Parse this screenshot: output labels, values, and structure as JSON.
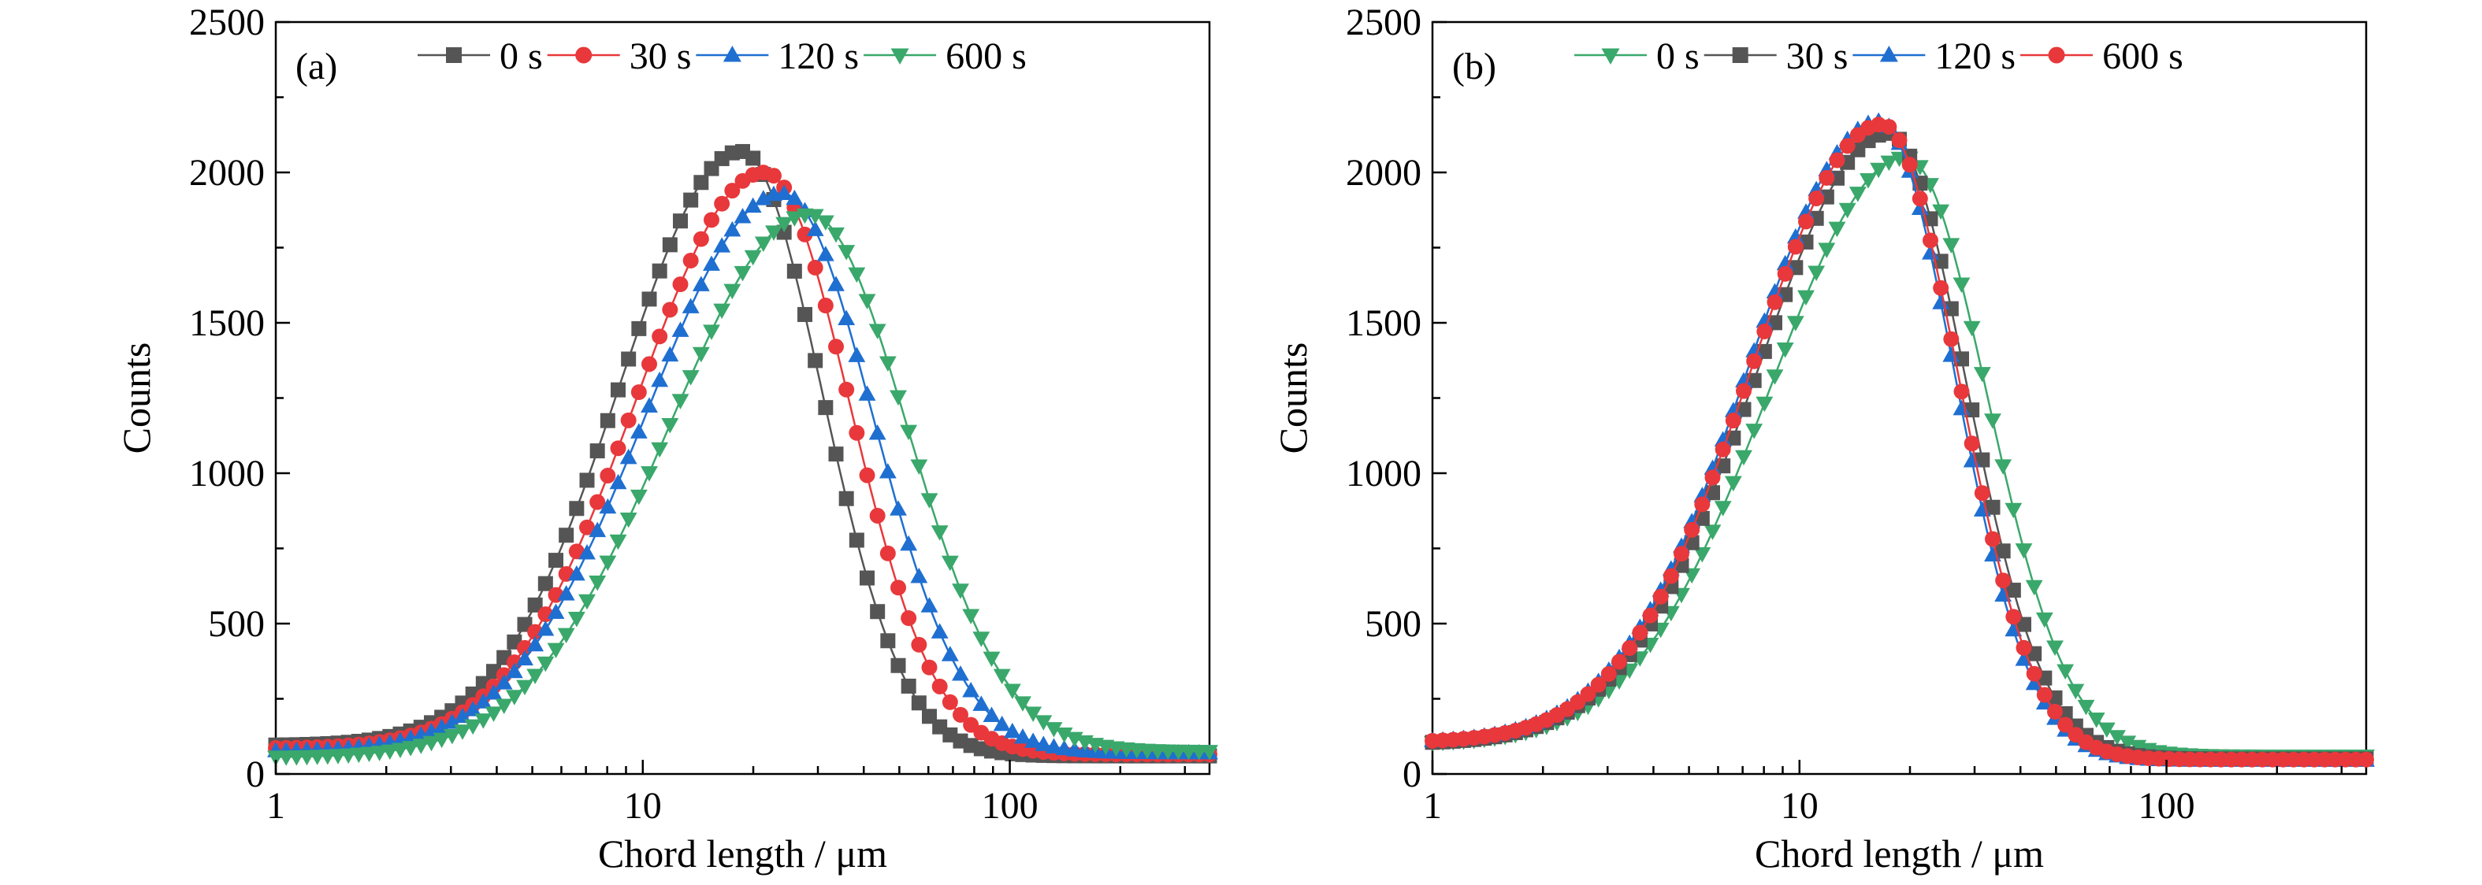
{
  "chart_data": [
    {
      "type": "line",
      "panel_label": "(a)",
      "xlabel": "Chord length / μm",
      "ylabel": "Counts",
      "xscale": "log",
      "xlim": [
        1,
        350
      ],
      "ylim": [
        0,
        2500
      ],
      "xticks": [
        1,
        10,
        100
      ],
      "xtick_labels": [
        "1",
        "10",
        "100"
      ],
      "yticks": [
        0,
        500,
        1000,
        1500,
        2000,
        2500
      ],
      "ytick_labels": [
        "0",
        "500",
        "1000",
        "1500",
        "2000",
        "2500"
      ],
      "legend_position": "top",
      "series": [
        {
          "name": "0 s",
          "color": "#555555",
          "marker": "square",
          "peak_x": 18.5,
          "peak_y": 2070,
          "base": 95,
          "tail": 60,
          "lw": 0.33,
          "rw": 0.22
        },
        {
          "name": "30 s",
          "color": "#e8383b",
          "marker": "circle",
          "peak_x": 21.5,
          "peak_y": 2000,
          "base": 85,
          "tail": 65,
          "lw": 0.35,
          "rw": 0.23
        },
        {
          "name": "120 s",
          "color": "#1f6fd1",
          "marker": "triangle-up",
          "peak_x": 24.0,
          "peak_y": 1930,
          "base": 75,
          "tail": 70,
          "lw": 0.37,
          "rw": 0.245
        },
        {
          "name": "600 s",
          "color": "#3aa86b",
          "marker": "triangle-down",
          "peak_x": 28.5,
          "peak_y": 1860,
          "base": 55,
          "tail": 75,
          "lw": 0.385,
          "rw": 0.265
        }
      ]
    },
    {
      "type": "line",
      "panel_label": "(b)",
      "xlabel": "Chord length / μm",
      "ylabel": "Counts",
      "xscale": "log",
      "xlim": [
        1,
        350
      ],
      "ylim": [
        0,
        2500
      ],
      "xticks": [
        1,
        10,
        100
      ],
      "xtick_labels": [
        "1",
        "10",
        "100"
      ],
      "yticks": [
        0,
        500,
        1000,
        1500,
        2000,
        2500
      ],
      "ytick_labels": [
        "0",
        "500",
        "1000",
        "1500",
        "2000",
        "2500"
      ],
      "legend_position": "top",
      "series": [
        {
          "name": "0 s",
          "color": "#3aa86b",
          "marker": "triangle-down",
          "peak_x": 19.5,
          "peak_y": 2050,
          "base": 100,
          "tail": 60,
          "lw": 0.37,
          "rw": 0.22
        },
        {
          "name": "30 s",
          "color": "#555555",
          "marker": "square",
          "peak_x": 17.5,
          "peak_y": 2130,
          "base": 100,
          "tail": 50,
          "lw": 0.36,
          "rw": 0.21
        },
        {
          "name": "120 s",
          "color": "#1f6fd1",
          "marker": "triangle-up",
          "peak_x": 16.5,
          "peak_y": 2170,
          "base": 105,
          "tail": 45,
          "lw": 0.355,
          "rw": 0.205
        },
        {
          "name": "600 s",
          "color": "#e8383b",
          "marker": "circle",
          "peak_x": 16.8,
          "peak_y": 2160,
          "base": 105,
          "tail": 48,
          "lw": 0.355,
          "rw": 0.207
        }
      ]
    }
  ]
}
